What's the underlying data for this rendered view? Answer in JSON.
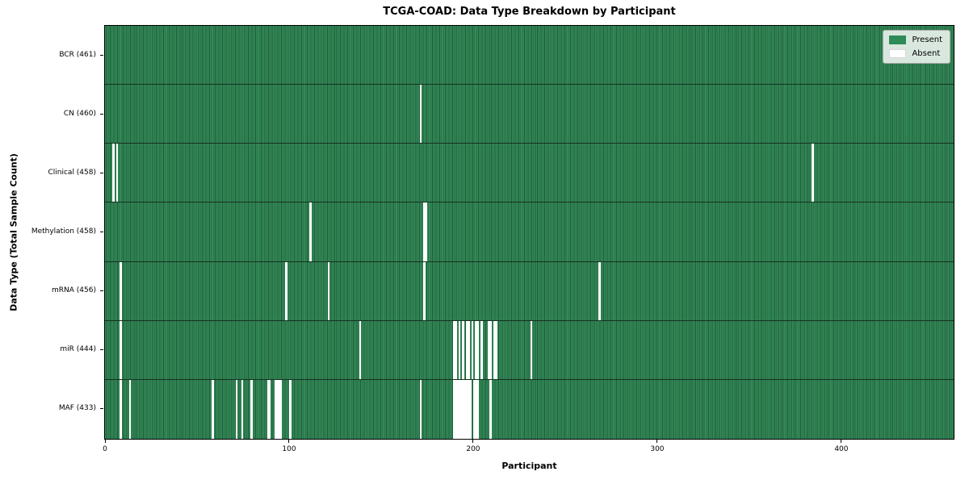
{
  "chart_data": {
    "type": "heatmap",
    "title": "TCGA-COAD: Data Type Breakdown by Participant",
    "xlabel": "Participant",
    "ylabel": "Data Type (Total Sample Count)",
    "n_participants": 461,
    "xlim": [
      0,
      461
    ],
    "x_ticks": [
      0,
      100,
      200,
      300,
      400
    ],
    "grid": "row-separators-only",
    "legend_position": "upper-right",
    "colors": {
      "present": "#2e8b57",
      "present_edge": "#1e5c3a",
      "absent": "#ffffff",
      "row_separator": "#16311f"
    },
    "legend": [
      {
        "label": "Present",
        "color": "#2e8b57"
      },
      {
        "label": "Absent",
        "color": "#ffffff"
      }
    ],
    "rows": [
      {
        "name": "BCR",
        "label": "BCR (461)",
        "total": 461,
        "absent_participants": []
      },
      {
        "name": "CN",
        "label": "CN (460)",
        "total": 460,
        "absent_participants": [
          171
        ]
      },
      {
        "name": "Clinical",
        "label": "Clinical (458)",
        "total": 458,
        "absent_participants": [
          4,
          6,
          384
        ]
      },
      {
        "name": "Methylation",
        "label": "Methylation (458)",
        "total": 458,
        "absent_participants": [
          111,
          173,
          174
        ]
      },
      {
        "name": "mRNA",
        "label": "mRNA (456)",
        "total": 456,
        "absent_participants": [
          8,
          98,
          121,
          173,
          268
        ]
      },
      {
        "name": "miR",
        "label": "miR (444)",
        "total": 444,
        "absent_participants": [
          8,
          138,
          189,
          190,
          192,
          194,
          196,
          197,
          199,
          201,
          202,
          204,
          208,
          209,
          211,
          212,
          231
        ]
      },
      {
        "name": "MAF",
        "label": "MAF (433)",
        "total": 433,
        "absent_participants": [
          8,
          13,
          58,
          71,
          74,
          79,
          88,
          89,
          92,
          93,
          94,
          95,
          100,
          171,
          189,
          190,
          191,
          192,
          193,
          194,
          195,
          196,
          197,
          198,
          200,
          201,
          202,
          209
        ]
      }
    ]
  }
}
